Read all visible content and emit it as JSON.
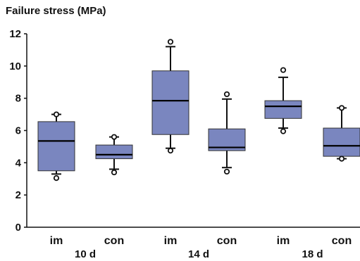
{
  "chart_data": {
    "type": "boxplot",
    "title": "Failure stress (MPa)",
    "ylim": [
      0,
      12
    ],
    "yticks": [
      0,
      2,
      4,
      6,
      8,
      10,
      12
    ],
    "categories": [
      "im",
      "con",
      "im",
      "con",
      "im",
      "con"
    ],
    "groups": [
      "10 d",
      "14 d",
      "18 d"
    ],
    "box_color": "#7a86bf",
    "boxes": [
      {
        "label": "im",
        "group": "10 d",
        "whisker_low": 3.3,
        "q1": 3.5,
        "median": 5.35,
        "q3": 6.55,
        "whisker_high": 7.0,
        "outliers": [
          3.05,
          7.0
        ]
      },
      {
        "label": "con",
        "group": "10 d",
        "whisker_low": 3.6,
        "q1": 4.25,
        "median": 4.5,
        "q3": 5.1,
        "whisker_high": 5.6,
        "outliers": [
          3.4,
          5.6
        ]
      },
      {
        "label": "im",
        "group": "14 d",
        "whisker_low": 4.9,
        "q1": 5.75,
        "median": 7.85,
        "q3": 9.7,
        "whisker_high": 11.2,
        "outliers": [
          4.75,
          11.5
        ]
      },
      {
        "label": "con",
        "group": "14 d",
        "whisker_low": 3.7,
        "q1": 4.75,
        "median": 4.95,
        "q3": 6.1,
        "whisker_high": 7.95,
        "outliers": [
          3.45,
          8.25
        ]
      },
      {
        "label": "im",
        "group": "18 d",
        "whisker_low": 6.15,
        "q1": 6.75,
        "median": 7.5,
        "q3": 7.85,
        "whisker_high": 9.3,
        "outliers": [
          5.95,
          9.75
        ]
      },
      {
        "label": "con",
        "group": "18 d",
        "whisker_low": 4.25,
        "q1": 4.4,
        "median": 5.05,
        "q3": 6.15,
        "whisker_high": 7.4,
        "outliers": [
          4.25,
          7.4
        ]
      }
    ]
  }
}
